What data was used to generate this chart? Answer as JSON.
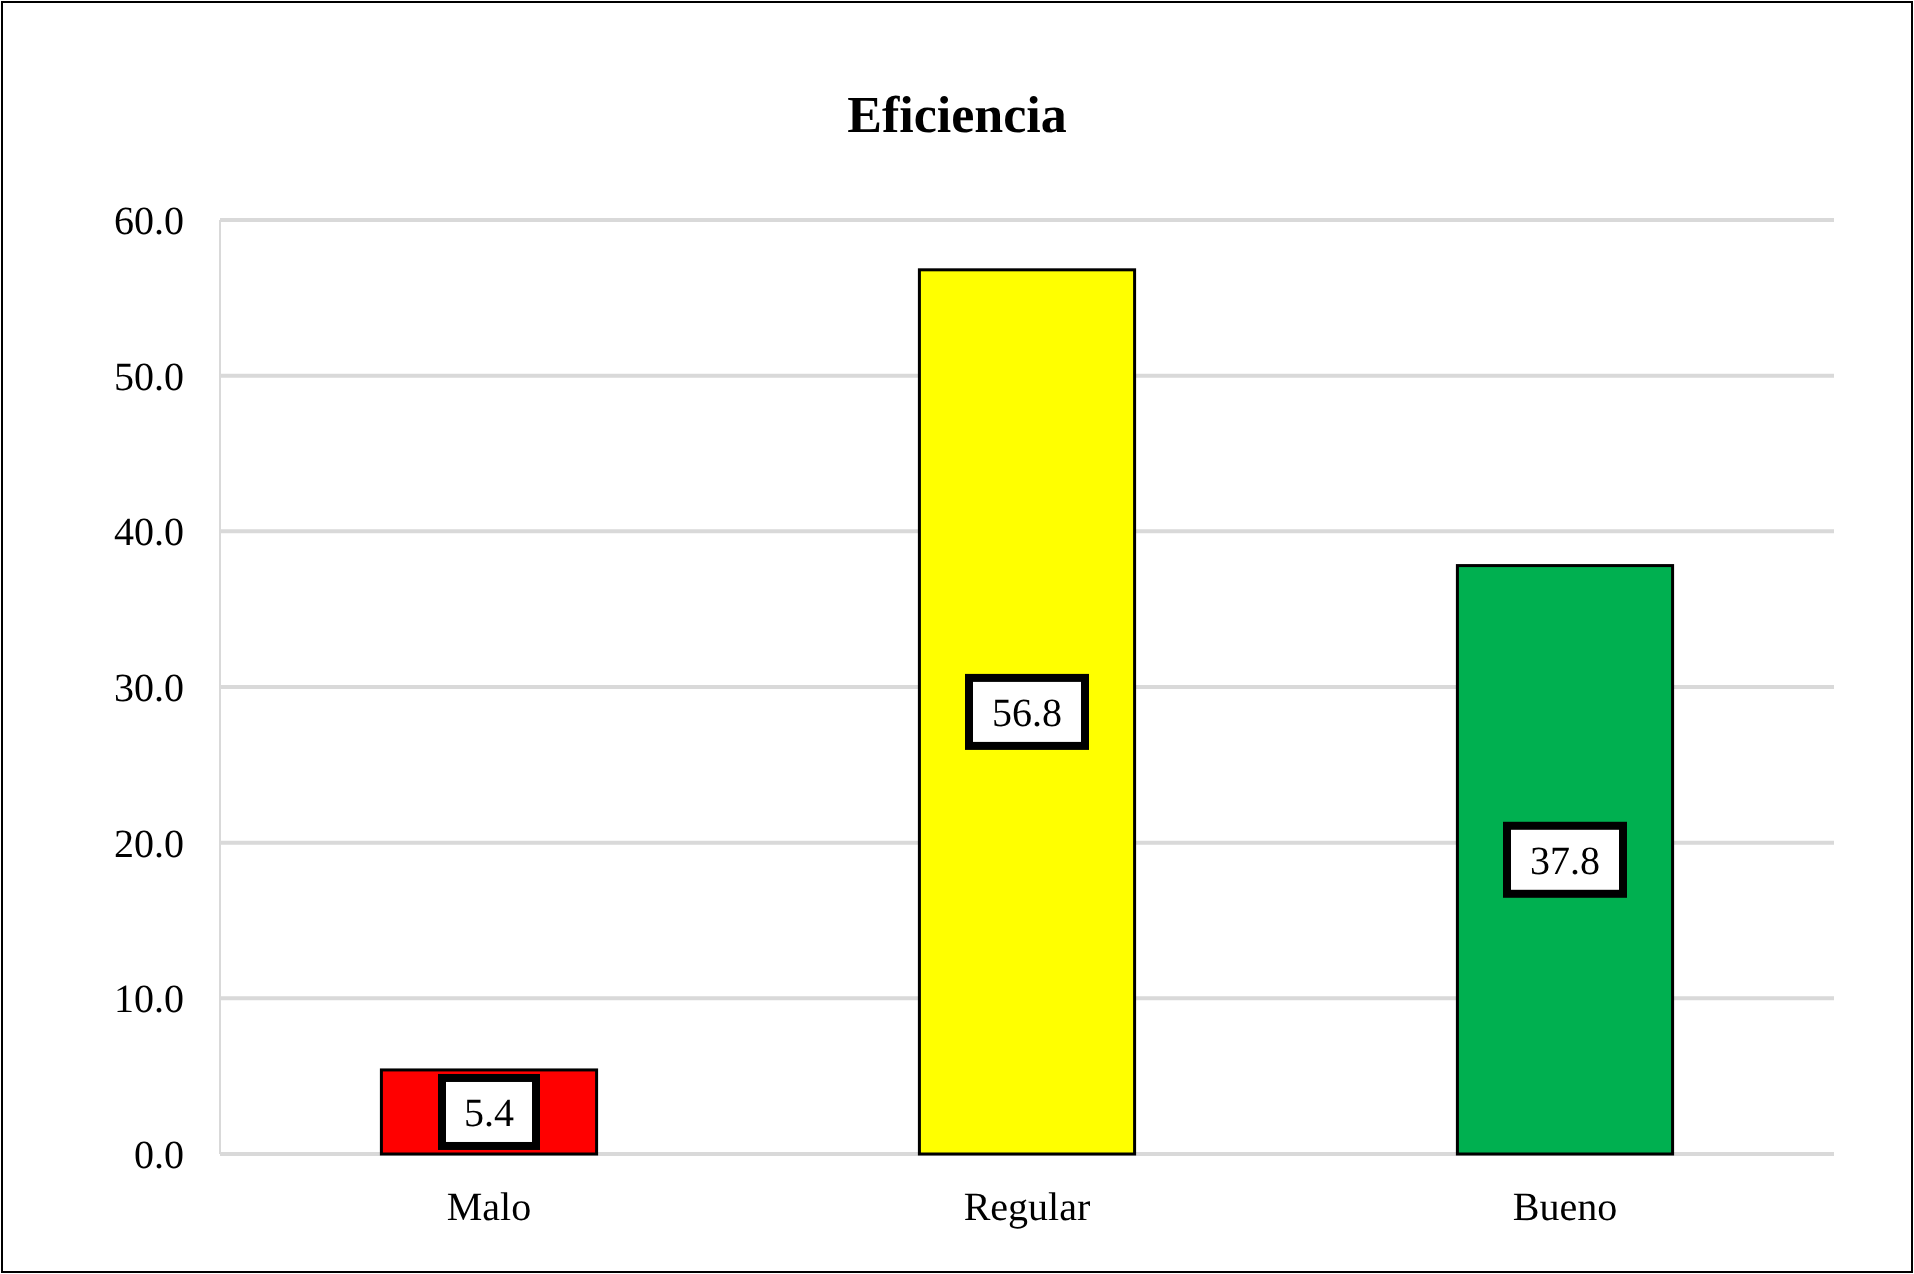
{
  "chart_data": {
    "type": "bar",
    "title": "Eficiencia",
    "categories": [
      "Malo",
      "Regular",
      "Bueno"
    ],
    "values": [
      5.4,
      56.8,
      37.8
    ],
    "colors": [
      "#ff0000",
      "#ffff00",
      "#00b050"
    ],
    "ylim": [
      0,
      60
    ],
    "yticks": [
      {
        "value": 0,
        "label": "0.0"
      },
      {
        "value": 10,
        "label": "10.0"
      },
      {
        "value": 20,
        "label": "20.0"
      },
      {
        "value": 30,
        "label": "30.0"
      },
      {
        "value": 40,
        "label": "40.0"
      },
      {
        "value": 50,
        "label": "50.0"
      },
      {
        "value": 60,
        "label": "60.0"
      }
    ],
    "grid": "y",
    "data_labels": true
  }
}
